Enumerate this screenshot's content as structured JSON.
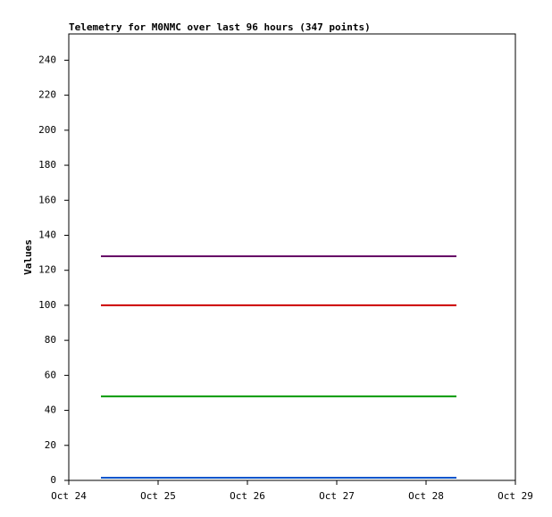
{
  "chart_data": {
    "type": "line",
    "title": "Telemetry for M0NMC over last 96 hours (347 points)",
    "y_label": "Values",
    "x": [
      0.36,
      4.34
    ],
    "xlim": [
      0,
      5
    ],
    "xticks": [
      {
        "value": 0,
        "label": "Oct 24"
      },
      {
        "value": 1,
        "label": "Oct 25"
      },
      {
        "value": 2,
        "label": "Oct 26"
      },
      {
        "value": 3,
        "label": "Oct 27"
      },
      {
        "value": 4,
        "label": "Oct 28"
      },
      {
        "value": 5,
        "label": "Oct 29"
      }
    ],
    "ylim": [
      0,
      255
    ],
    "yticks": [
      0,
      20,
      40,
      60,
      80,
      100,
      120,
      140,
      160,
      180,
      200,
      220,
      240
    ],
    "series": [
      {
        "color": "#660066",
        "values": [
          128,
          128
        ]
      },
      {
        "color": "#cc0000",
        "values": [
          100,
          100
        ]
      },
      {
        "color": "#009900",
        "values": [
          48,
          48
        ]
      },
      {
        "color": "#0055cc",
        "values": [
          1.5,
          1.5
        ]
      }
    ]
  }
}
